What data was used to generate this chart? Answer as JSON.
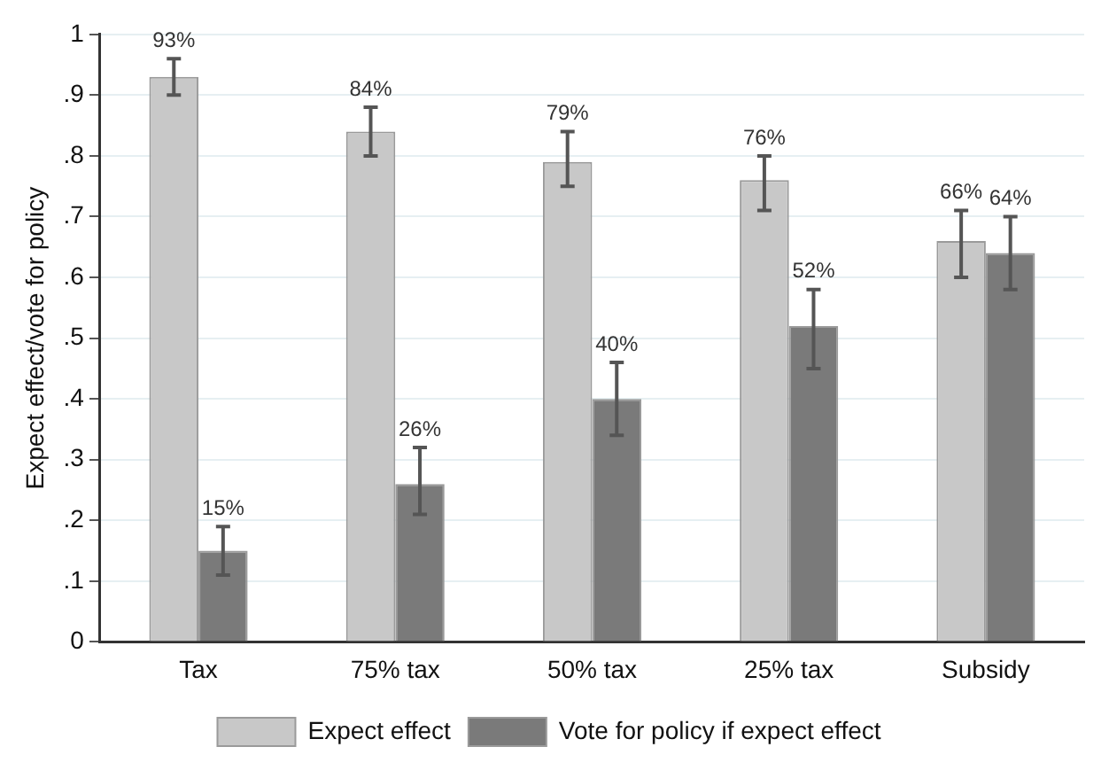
{
  "chart_data": {
    "type": "bar",
    "ylabel": "Expect effect/vote for policy",
    "categories": [
      "Tax",
      "75% tax",
      "50% tax",
      "25% tax",
      "Subsidy"
    ],
    "series": [
      {
        "name": "Expect effect",
        "color": "#c8c8c8",
        "values": [
          0.93,
          0.84,
          0.79,
          0.76,
          0.66
        ],
        "errors": [
          [
            0.9,
            0.96
          ],
          [
            0.8,
            0.88
          ],
          [
            0.75,
            0.84
          ],
          [
            0.71,
            0.8
          ],
          [
            0.6,
            0.71
          ]
        ],
        "value_labels": [
          "93%",
          "84%",
          "79%",
          "76%",
          "66%"
        ]
      },
      {
        "name": "Vote for policy if expect effect",
        "color": "#7a7a7a",
        "values": [
          0.15,
          0.26,
          0.4,
          0.52,
          0.64
        ],
        "errors": [
          [
            0.11,
            0.19
          ],
          [
            0.21,
            0.32
          ],
          [
            0.34,
            0.46
          ],
          [
            0.45,
            0.58
          ],
          [
            0.58,
            0.7
          ]
        ],
        "value_labels": [
          "15%",
          "26%",
          "40%",
          "52%",
          "64%"
        ]
      }
    ],
    "ylim": [
      0,
      1
    ],
    "yticks": [
      0,
      {
        "value": 0.1,
        "label": ".1"
      },
      {
        "value": 0.2,
        "label": ".2"
      },
      {
        "value": 0.3,
        "label": ".3"
      },
      {
        "value": 0.4,
        "label": ".4"
      },
      {
        "value": 0.5,
        "label": ".5"
      },
      {
        "value": 0.6,
        "label": ".6"
      },
      {
        "value": 0.7,
        "label": ".7"
      },
      {
        "value": 0.8,
        "label": ".8"
      },
      {
        "value": 0.9,
        "label": ".9"
      },
      1
    ],
    "grid": "y",
    "legend": "bottom"
  }
}
